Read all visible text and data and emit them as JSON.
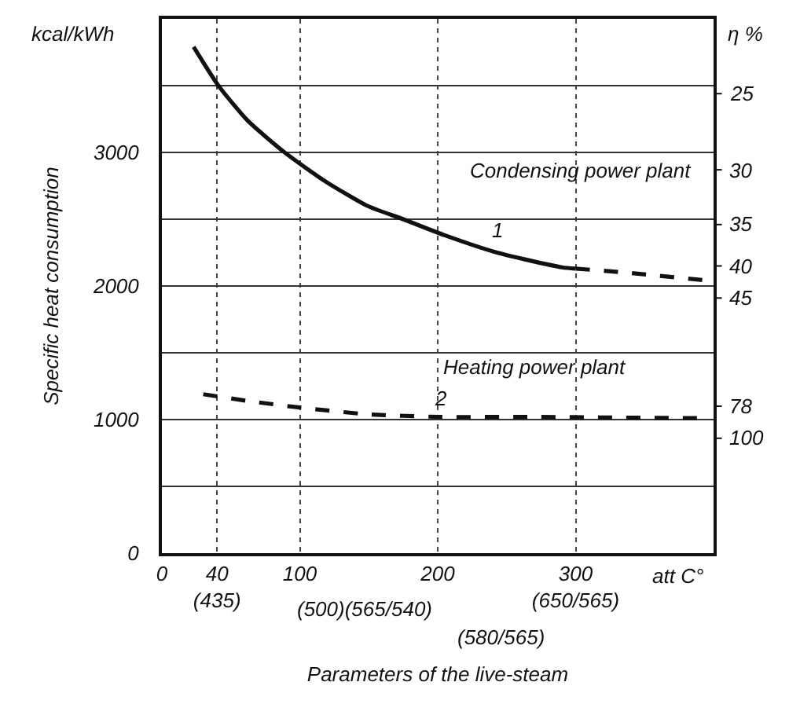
{
  "chart_data": {
    "type": "line",
    "xlabel": "Parameters of the live-steam",
    "ylabel": "Specific heat consumption",
    "y2label": "η %",
    "xlim": [
      0,
      400
    ],
    "ylim": [
      0,
      4000
    ],
    "xticks": [
      0,
      {
        "value": 40,
        "label": "40\n(435)"
      },
      100,
      200,
      {
        "value": 300,
        "label": "300\n(650/565)"
      }
    ],
    "yticks": [
      0,
      {
        "value": 500,
        "label": null
      },
      1000,
      {
        "value": 1500,
        "label": null
      },
      2000,
      {
        "value": 2500,
        "label": null
      },
      3000,
      {
        "value": 3500,
        "label": null
      },
      {
        "value": 4000,
        "label": null
      }
    ],
    "grid": true,
    "legend": false,
    "marker": "none",
    "series": [
      {
        "name": "1",
        "color": "#111111",
        "line_style": "solid",
        "x": [
          23,
          41,
          62,
          89,
          119,
          149,
          175,
          205,
          243,
          290,
          300
        ],
        "values": [
          3790,
          3500,
          3240,
          3000,
          2780,
          2600,
          2500,
          2380,
          2250,
          2140,
          2130
        ]
      },
      {
        "color": "#111111",
        "line_style": "dashed",
        "x": [
          300,
          337,
          396
        ],
        "values": [
          2130,
          2100,
          2040
        ]
      },
      {
        "name": "2",
        "color": "#111111",
        "line_style": "dashed",
        "x": [
          30,
          62,
          100,
          149,
          202,
          262,
          396
        ],
        "values": [
          1190,
          1140,
          1090,
          1040,
          1020,
          1020,
          1010
        ]
      }
    ],
    "annotations": [
      "kcal/kWh",
      "Condensing power plant",
      "Heating power plant",
      "(500)(565/540)",
      "(580/565)",
      "att C°",
      "25",
      "30",
      "35",
      "40",
      "45",
      "78",
      "100"
    ]
  }
}
